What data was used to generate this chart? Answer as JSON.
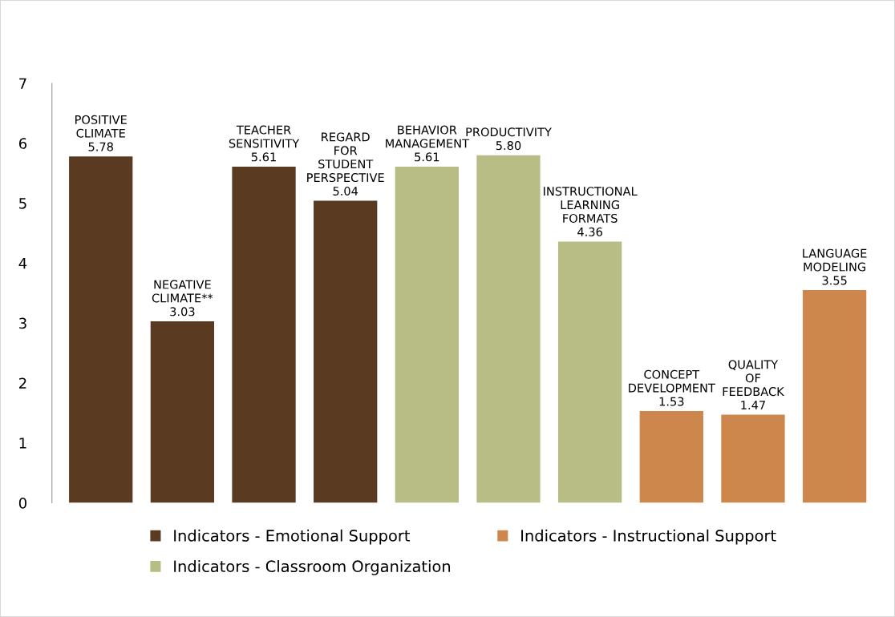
{
  "chart_data": {
    "type": "bar",
    "categories": [
      "POSITIVE CLIMATE",
      "NEGATIVE CLIMATE**",
      "TEACHER SENSITIVITY",
      "REGARD FOR STUDENT PERSPECTIVE",
      "BEHAVIOR MANAGEMENT",
      "PRODUCTIVITY",
      "INSTRUCTIONAL LEARNING FORMATS",
      "CONCEPT DEVELOPMENT",
      "QUALITY OF FEEDBACK",
      "LANGUAGE MODELING"
    ],
    "series": [
      {
        "name": "Indicators - Emotional Support",
        "color": "#5a3b21",
        "values": [
          5.78,
          3.03,
          5.61,
          5.04,
          null,
          null,
          null,
          null,
          null,
          null
        ],
        "value_labels": [
          "5.78",
          "3.03",
          "5.61",
          "5.04",
          null,
          null,
          null,
          null,
          null,
          null
        ]
      },
      {
        "name": "Indicators - Classroom Organization",
        "color": "#b8bd86",
        "values": [
          null,
          null,
          null,
          null,
          5.61,
          5.8,
          4.36,
          null,
          null,
          null
        ],
        "value_labels": [
          null,
          null,
          null,
          null,
          "5.61",
          "5.80",
          "4.36",
          null,
          null,
          null
        ]
      },
      {
        "name": "Indicators - Instructional Support",
        "color": "#cd864b",
        "values": [
          null,
          null,
          null,
          null,
          null,
          null,
          null,
          1.53,
          1.47,
          3.55
        ],
        "value_labels": [
          null,
          null,
          null,
          null,
          null,
          null,
          null,
          "1.53",
          "1.47",
          "3.55"
        ]
      }
    ],
    "ylim": [
      0,
      7
    ],
    "yticks": [
      0,
      1,
      2,
      3,
      4,
      5,
      6,
      7
    ],
    "tick_labels": "y",
    "grid": false,
    "legend": "bottom"
  }
}
